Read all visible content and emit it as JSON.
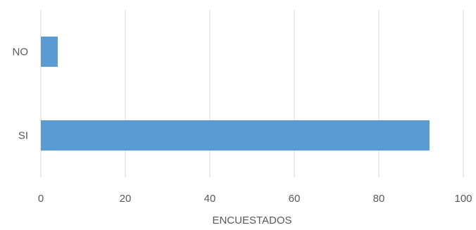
{
  "chart_data": {
    "type": "bar",
    "orientation": "horizontal",
    "categories": [
      "NO",
      "SI"
    ],
    "values": [
      4,
      92
    ],
    "title": "",
    "xlabel": "ENCUESTADOS",
    "ylabel": "",
    "xlim": [
      0,
      100
    ],
    "xticks": [
      0,
      20,
      40,
      60,
      80,
      100
    ],
    "grid": "vertical",
    "legend": "none",
    "bar_color": "#5B9BD5",
    "grid_color": "#D9D9D9",
    "text_color": "#595959"
  }
}
